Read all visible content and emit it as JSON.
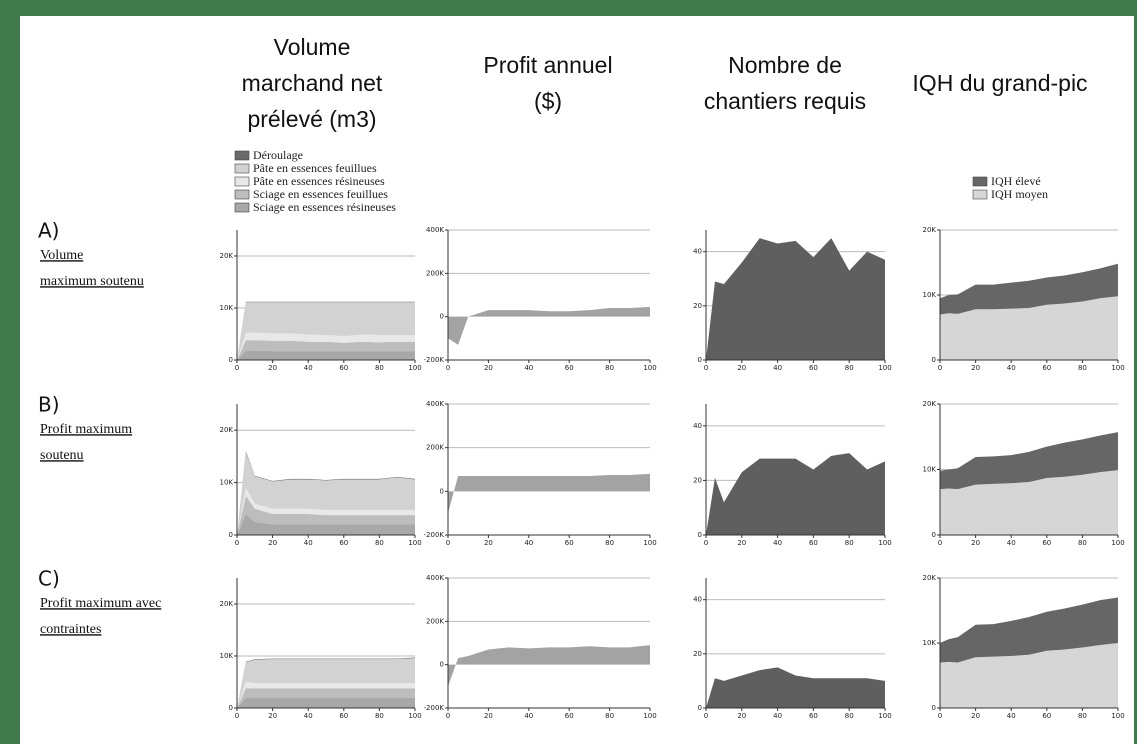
{
  "column_headers": [
    [
      "Volume",
      "marchand net",
      "prélevé (m3)"
    ],
    [
      "Profit annuel",
      "($)"
    ],
    [
      "Nombre de",
      "chantiers requis"
    ],
    [
      "IQH du grand-pic"
    ]
  ],
  "rows": [
    {
      "letter": "A)",
      "lines": [
        "Volume",
        "maximum soutenu"
      ]
    },
    {
      "letter": "B)",
      "lines": [
        "Profit maximum",
        "soutenu"
      ]
    },
    {
      "letter": "C)",
      "lines": [
        "Profit maximum avec",
        "contraintes"
      ]
    }
  ],
  "chart_data": [
    {
      "type": "area",
      "legend": "top-left",
      "x": [
        0,
        5,
        10,
        20,
        30,
        40,
        50,
        60,
        70,
        80,
        90,
        100
      ],
      "xlim": [
        0,
        100
      ],
      "xticks": [
        0,
        20,
        40,
        60,
        80,
        100
      ],
      "ylim": [
        0,
        25000
      ],
      "yticks": [
        0,
        {
          "value": 10000,
          "label": "10K"
        },
        {
          "value": 20000,
          "label": "20K"
        }
      ],
      "grid": true,
      "series": [
        {
          "name": "Déroulage",
          "color": "#6a6a6a",
          "values": [
            0,
            100,
            100,
            100,
            100,
            100,
            100,
            100,
            100,
            100,
            100,
            100
          ]
        },
        {
          "name": "Pâte en essences feuillues",
          "color": "#d2d2d2",
          "values": [
            0,
            5800,
            5800,
            6000,
            6000,
            6200,
            6300,
            6500,
            6200,
            6300,
            6300,
            6300
          ]
        },
        {
          "name": "Pâte en essences résineuses",
          "color": "#e8e8e8",
          "values": [
            0,
            1500,
            1500,
            1400,
            1400,
            1400,
            1300,
            1300,
            1400,
            1400,
            1300,
            1300
          ]
        },
        {
          "name": "Sciage en essences feuillues",
          "color": "#bdbdbd",
          "values": [
            0,
            2000,
            2000,
            2000,
            2000,
            1800,
            1800,
            1600,
            1800,
            1700,
            1800,
            1800
          ]
        },
        {
          "name": "Sciage en essences résineuses",
          "color": "#a8a8a8",
          "values": [
            0,
            1800,
            1800,
            1700,
            1700,
            1700,
            1700,
            1700,
            1700,
            1700,
            1700,
            1700
          ]
        }
      ]
    },
    {
      "type": "area",
      "x": [
        0,
        5,
        10,
        20,
        30,
        40,
        50,
        60,
        70,
        80,
        90,
        100
      ],
      "xlim": [
        0,
        100
      ],
      "xticks": [
        0,
        20,
        40,
        60,
        80,
        100
      ],
      "ylim": [
        -200000,
        400000
      ],
      "yticks": [
        {
          "value": -200000,
          "label": "-200K"
        },
        0,
        {
          "value": 200000,
          "label": "200K"
        },
        {
          "value": 400000,
          "label": "400K"
        }
      ],
      "grid": true,
      "series": [
        {
          "color": "#a3a3a3",
          "values": [
            -100000,
            -130000,
            0,
            30000,
            30000,
            30000,
            25000,
            25000,
            30000,
            40000,
            40000,
            45000
          ]
        }
      ]
    },
    {
      "type": "area",
      "x": [
        0,
        5,
        10,
        20,
        30,
        40,
        50,
        60,
        70,
        80,
        90,
        100
      ],
      "xlim": [
        0,
        100
      ],
      "xticks": [
        0,
        20,
        40,
        60,
        80,
        100
      ],
      "ylim": [
        0,
        48
      ],
      "yticks": [
        0,
        20,
        40
      ],
      "grid": true,
      "series": [
        {
          "color": "#5f5f5f",
          "values": [
            0,
            29,
            28,
            36,
            45,
            43,
            44,
            38,
            45,
            33,
            40,
            37
          ]
        }
      ]
    },
    {
      "type": "area",
      "legend": "top-right",
      "x": [
        0,
        5,
        10,
        20,
        30,
        40,
        50,
        60,
        70,
        80,
        90,
        100
      ],
      "xlim": [
        0,
        100
      ],
      "xticks": [
        0,
        20,
        40,
        60,
        80,
        100
      ],
      "ylim": [
        0,
        20000
      ],
      "yticks": [
        0,
        {
          "value": 10000,
          "label": "10K"
        },
        {
          "value": 20000,
          "label": "20K"
        }
      ],
      "grid": true,
      "series": [
        {
          "name": "IQH élevé",
          "color": "#666666",
          "values": [
            2500,
            2800,
            3000,
            3800,
            3800,
            4000,
            4200,
            4200,
            4300,
            4500,
            4600,
            5000
          ]
        },
        {
          "name": "IQH moyen",
          "color": "#d6d6d6",
          "values": [
            7000,
            7200,
            7100,
            7800,
            7800,
            7900,
            8000,
            8500,
            8700,
            9000,
            9500,
            9800
          ]
        }
      ]
    },
    {
      "type": "area",
      "x": [
        0,
        5,
        10,
        20,
        30,
        40,
        50,
        60,
        70,
        80,
        90,
        100
      ],
      "xlim": [
        0,
        100
      ],
      "xticks": [
        0,
        20,
        40,
        60,
        80,
        100
      ],
      "ylim": [
        0,
        25000
      ],
      "yticks": [
        0,
        {
          "value": 10000,
          "label": "10K"
        },
        {
          "value": 20000,
          "label": "20K"
        }
      ],
      "grid": true,
      "series": [
        {
          "color": "#6a6a6a",
          "values": [
            0,
            200,
            100,
            100,
            100,
            100,
            100,
            100,
            100,
            100,
            100,
            100
          ]
        },
        {
          "color": "#d2d2d2",
          "values": [
            0,
            6800,
            5200,
            5200,
            5600,
            5600,
            5600,
            5800,
            5800,
            5800,
            6200,
            5800
          ]
        },
        {
          "color": "#e8e8e8",
          "values": [
            0,
            1500,
            1000,
            1000,
            1000,
            1000,
            1000,
            1000,
            1000,
            1000,
            1000,
            1000
          ]
        },
        {
          "color": "#bdbdbd",
          "values": [
            0,
            3500,
            2500,
            2000,
            2000,
            2000,
            1800,
            1800,
            1800,
            1800,
            1800,
            1800
          ]
        },
        {
          "color": "#a8a8a8",
          "values": [
            0,
            4000,
            2500,
            2000,
            2000,
            2000,
            2000,
            2000,
            2000,
            2000,
            2000,
            2000
          ]
        }
      ]
    },
    {
      "type": "area",
      "x": [
        0,
        5,
        10,
        20,
        30,
        40,
        50,
        60,
        70,
        80,
        90,
        100
      ],
      "xlim": [
        0,
        100
      ],
      "xticks": [
        0,
        20,
        40,
        60,
        80,
        100
      ],
      "ylim": [
        -200000,
        400000
      ],
      "yticks": [
        {
          "value": -200000,
          "label": "-200K"
        },
        0,
        {
          "value": 200000,
          "label": "200K"
        },
        {
          "value": 400000,
          "label": "400K"
        }
      ],
      "grid": true,
      "series": [
        {
          "color": "#a3a3a3",
          "values": [
            -100000,
            70000,
            70000,
            70000,
            70000,
            70000,
            70000,
            70000,
            70000,
            75000,
            75000,
            80000
          ]
        }
      ]
    },
    {
      "type": "area",
      "x": [
        0,
        5,
        10,
        20,
        30,
        40,
        50,
        60,
        70,
        80,
        90,
        100
      ],
      "xlim": [
        0,
        100
      ],
      "xticks": [
        0,
        20,
        40,
        60,
        80,
        100
      ],
      "ylim": [
        0,
        48
      ],
      "yticks": [
        0,
        20,
        40
      ],
      "grid": true,
      "series": [
        {
          "color": "#5f5f5f",
          "values": [
            0,
            21,
            12,
            23,
            28,
            28,
            28,
            24,
            29,
            30,
            24,
            27
          ]
        }
      ]
    },
    {
      "type": "area",
      "x": [
        0,
        5,
        10,
        20,
        30,
        40,
        50,
        60,
        70,
        80,
        90,
        100
      ],
      "xlim": [
        0,
        100
      ],
      "xticks": [
        0,
        20,
        40,
        60,
        80,
        100
      ],
      "ylim": [
        0,
        20000
      ],
      "yticks": [
        0,
        {
          "value": 10000,
          "label": "10K"
        },
        {
          "value": 20000,
          "label": "20K"
        }
      ],
      "grid": true,
      "series": [
        {
          "color": "#666666",
          "values": [
            2800,
            2900,
            3200,
            4200,
            4200,
            4300,
            4600,
            4800,
            5200,
            5400,
            5600,
            5800
          ]
        },
        {
          "color": "#d6d6d6",
          "values": [
            7000,
            7100,
            7000,
            7700,
            7800,
            7900,
            8100,
            8700,
            8900,
            9200,
            9600,
            9900
          ]
        }
      ]
    },
    {
      "type": "area",
      "x": [
        0,
        5,
        10,
        20,
        30,
        40,
        50,
        60,
        70,
        80,
        90,
        100
      ],
      "xlim": [
        0,
        100
      ],
      "xticks": [
        0,
        20,
        40,
        60,
        80,
        100
      ],
      "ylim": [
        0,
        25000
      ],
      "yticks": [
        0,
        {
          "value": 10000,
          "label": "10K"
        },
        {
          "value": 20000,
          "label": "20K"
        }
      ],
      "grid": true,
      "series": [
        {
          "color": "#6a6a6a",
          "values": [
            0,
            100,
            100,
            100,
            100,
            100,
            100,
            100,
            100,
            100,
            100,
            100
          ]
        },
        {
          "color": "#d2d2d2",
          "values": [
            0,
            3800,
            4500,
            4600,
            4600,
            4600,
            4600,
            4600,
            4600,
            4600,
            4600,
            4800
          ]
        },
        {
          "color": "#e8e8e8",
          "values": [
            0,
            1200,
            1000,
            1000,
            1000,
            1000,
            1000,
            1000,
            1000,
            1000,
            1000,
            1000
          ]
        },
        {
          "color": "#bdbdbd",
          "values": [
            0,
            1800,
            1800,
            1800,
            1800,
            1800,
            1800,
            1800,
            1800,
            1800,
            1800,
            1800
          ]
        },
        {
          "color": "#a8a8a8",
          "values": [
            0,
            2000,
            2000,
            2000,
            2000,
            2000,
            2000,
            2000,
            2000,
            2000,
            2000,
            2000
          ]
        }
      ]
    },
    {
      "type": "area",
      "x": [
        0,
        5,
        10,
        20,
        30,
        40,
        50,
        60,
        70,
        80,
        90,
        100
      ],
      "xlim": [
        0,
        100
      ],
      "xticks": [
        0,
        20,
        40,
        60,
        80,
        100
      ],
      "ylim": [
        -200000,
        400000
      ],
      "yticks": [
        {
          "value": -200000,
          "label": "-200K"
        },
        0,
        {
          "value": 200000,
          "label": "200K"
        },
        {
          "value": 400000,
          "label": "400K"
        }
      ],
      "grid": true,
      "series": [
        {
          "color": "#a3a3a3",
          "values": [
            -100000,
            30000,
            40000,
            70000,
            80000,
            75000,
            80000,
            80000,
            85000,
            80000,
            80000,
            90000
          ]
        }
      ]
    },
    {
      "type": "area",
      "x": [
        0,
        5,
        10,
        20,
        30,
        40,
        50,
        60,
        70,
        80,
        90,
        100
      ],
      "xlim": [
        0,
        100
      ],
      "xticks": [
        0,
        20,
        40,
        60,
        80,
        100
      ],
      "ylim": [
        0,
        48
      ],
      "yticks": [
        0,
        20,
        40
      ],
      "grid": true,
      "series": [
        {
          "color": "#5f5f5f",
          "values": [
            0,
            11,
            10,
            12,
            14,
            15,
            12,
            11,
            11,
            11,
            11,
            10
          ]
        }
      ]
    },
    {
      "type": "area",
      "x": [
        0,
        5,
        10,
        20,
        30,
        40,
        50,
        60,
        70,
        80,
        90,
        100
      ],
      "xlim": [
        0,
        100
      ],
      "xticks": [
        0,
        20,
        40,
        60,
        80,
        100
      ],
      "ylim": [
        0,
        20000
      ],
      "yticks": [
        0,
        {
          "value": 10000,
          "label": "10K"
        },
        {
          "value": 20000,
          "label": "20K"
        }
      ],
      "grid": true,
      "series": [
        {
          "color": "#666666",
          "values": [
            3000,
            3500,
            3900,
            5000,
            5000,
            5400,
            5800,
            6000,
            6300,
            6600,
            6900,
            7000
          ]
        },
        {
          "color": "#d6d6d6",
          "values": [
            7000,
            7100,
            7000,
            7800,
            7900,
            8000,
            8200,
            8800,
            9000,
            9300,
            9700,
            10000
          ]
        }
      ]
    }
  ]
}
